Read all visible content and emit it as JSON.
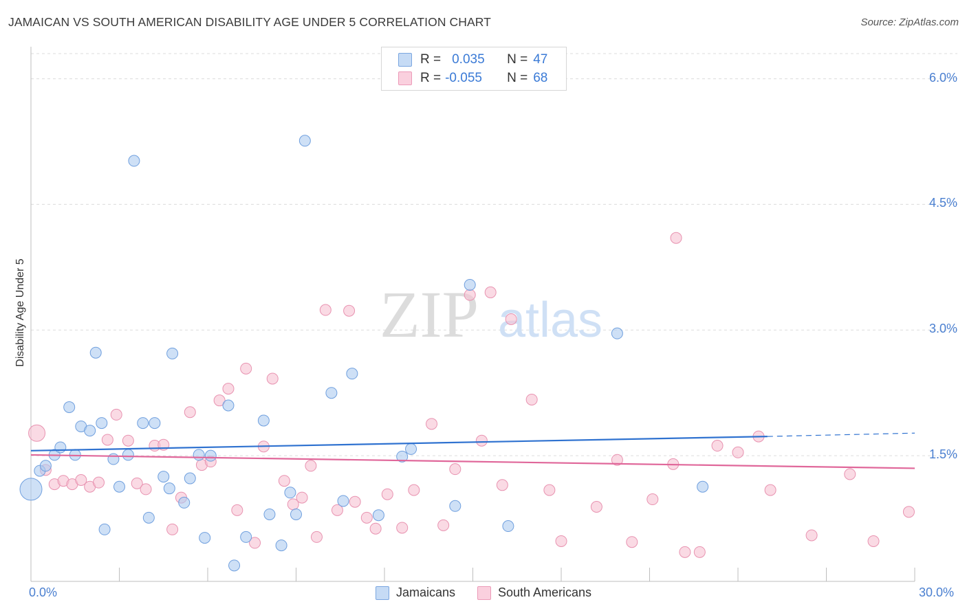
{
  "header": {
    "title": "JAMAICAN VS SOUTH AMERICAN DISABILITY AGE UNDER 5 CORRELATION CHART",
    "source": "Source: ZipAtlas.com"
  },
  "watermark": {
    "zip": "ZIP",
    "atlas": "atlas"
  },
  "legend_top": {
    "rows": [
      {
        "r_label": "R =",
        "r_value": "0.035",
        "n_label": "N =",
        "n_value": "47"
      },
      {
        "r_label": "R =",
        "r_value": "-0.055",
        "n_label": "N =",
        "n_value": "68"
      }
    ]
  },
  "colors": {
    "jamaicans_fill": "#aecbf0",
    "jamaicans_stroke": "#6f9fde",
    "jamaicans_line": "#2f72d0",
    "south_fill": "#f7c1d2",
    "south_stroke": "#e892b0",
    "south_line": "#e0679a",
    "grid": "#dcdcdc",
    "tick_text": "#4a7fd0"
  },
  "chart_data": {
    "type": "scatter",
    "title": "JAMAICAN VS SOUTH AMERICAN DISABILITY AGE UNDER 5 CORRELATION CHART",
    "xlabel": "",
    "ylabel": "Disability Age Under 5",
    "xlim": [
      0,
      30
    ],
    "ylim": [
      0,
      6.3
    ],
    "x_tick_labels": [
      "0.0%",
      "30.0%"
    ],
    "y_ticks": [
      1.5,
      3.0,
      4.5,
      6.0
    ],
    "y_tick_labels": [
      "1.5%",
      "3.0%",
      "4.5%",
      "6.0%"
    ],
    "legend": [
      "Jamaicans",
      "South Americans"
    ],
    "series": [
      {
        "name": "Jamaicans",
        "r": 0.035,
        "n": 47,
        "trend": {
          "x": [
            0,
            25.0
          ],
          "y": [
            1.56,
            1.73
          ],
          "dashed_extension": [
            25.0,
            30.0
          ],
          "dashed_y": [
            1.73,
            1.77
          ]
        },
        "points": [
          [
            0.0,
            1.1
          ],
          [
            0.3,
            1.32
          ],
          [
            0.5,
            1.38
          ],
          [
            0.8,
            1.51
          ],
          [
            1.0,
            1.6
          ],
          [
            1.3,
            2.08
          ],
          [
            1.5,
            1.51
          ],
          [
            1.7,
            1.85
          ],
          [
            2.0,
            1.8
          ],
          [
            2.2,
            2.73
          ],
          [
            2.4,
            1.89
          ],
          [
            2.5,
            0.62
          ],
          [
            2.8,
            1.46
          ],
          [
            3.0,
            1.13
          ],
          [
            3.3,
            1.51
          ],
          [
            3.5,
            5.02
          ],
          [
            3.8,
            1.89
          ],
          [
            4.0,
            0.76
          ],
          [
            4.2,
            1.89
          ],
          [
            4.5,
            1.25
          ],
          [
            4.7,
            1.11
          ],
          [
            4.8,
            2.72
          ],
          [
            5.2,
            0.94
          ],
          [
            5.4,
            1.23
          ],
          [
            5.7,
            1.51
          ],
          [
            5.9,
            0.52
          ],
          [
            6.1,
            1.5
          ],
          [
            6.7,
            2.1
          ],
          [
            6.9,
            0.19
          ],
          [
            7.3,
            0.53
          ],
          [
            7.9,
            1.92
          ],
          [
            8.1,
            0.8
          ],
          [
            8.5,
            0.43
          ],
          [
            8.8,
            1.06
          ],
          [
            9.0,
            0.8
          ],
          [
            9.3,
            5.26
          ],
          [
            10.2,
            2.25
          ],
          [
            10.6,
            0.96
          ],
          [
            10.9,
            2.48
          ],
          [
            11.8,
            0.79
          ],
          [
            12.6,
            1.49
          ],
          [
            12.9,
            1.58
          ],
          [
            14.4,
            0.9
          ],
          [
            14.9,
            3.54
          ],
          [
            16.2,
            0.66
          ],
          [
            19.9,
            2.96
          ],
          [
            22.8,
            1.13
          ]
        ]
      },
      {
        "name": "South Americans",
        "r": -0.055,
        "n": 68,
        "trend": {
          "x": [
            0,
            30.0
          ],
          "y": [
            1.51,
            1.35
          ]
        },
        "points": [
          [
            0.2,
            1.77
          ],
          [
            0.5,
            1.33
          ],
          [
            0.8,
            1.16
          ],
          [
            1.1,
            1.2
          ],
          [
            1.4,
            1.16
          ],
          [
            1.7,
            1.21
          ],
          [
            2.0,
            1.13
          ],
          [
            2.3,
            1.18
          ],
          [
            2.6,
            1.69
          ],
          [
            2.9,
            1.99
          ],
          [
            3.3,
            1.68
          ],
          [
            3.6,
            1.17
          ],
          [
            3.9,
            1.1
          ],
          [
            4.2,
            1.62
          ],
          [
            4.5,
            1.63
          ],
          [
            4.8,
            0.62
          ],
          [
            5.1,
            1.0
          ],
          [
            5.4,
            2.02
          ],
          [
            5.8,
            1.39
          ],
          [
            6.1,
            1.43
          ],
          [
            6.4,
            2.16
          ],
          [
            6.7,
            2.3
          ],
          [
            7.0,
            0.85
          ],
          [
            7.3,
            2.54
          ],
          [
            7.6,
            0.46
          ],
          [
            7.9,
            1.61
          ],
          [
            8.2,
            2.42
          ],
          [
            8.6,
            1.2
          ],
          [
            8.9,
            0.92
          ],
          [
            9.2,
            1.0
          ],
          [
            9.5,
            1.38
          ],
          [
            9.7,
            0.53
          ],
          [
            10.0,
            3.24
          ],
          [
            10.4,
            0.85
          ],
          [
            10.8,
            3.23
          ],
          [
            11.0,
            0.95
          ],
          [
            11.4,
            0.76
          ],
          [
            11.7,
            0.63
          ],
          [
            12.1,
            1.04
          ],
          [
            12.6,
            0.64
          ],
          [
            13.0,
            1.09
          ],
          [
            13.6,
            1.88
          ],
          [
            14.0,
            0.67
          ],
          [
            14.4,
            1.34
          ],
          [
            14.9,
            3.42
          ],
          [
            15.3,
            1.68
          ],
          [
            15.6,
            3.45
          ],
          [
            16.0,
            1.15
          ],
          [
            16.3,
            3.13
          ],
          [
            17.0,
            2.17
          ],
          [
            17.6,
            1.09
          ],
          [
            18.0,
            0.48
          ],
          [
            19.2,
            0.89
          ],
          [
            19.9,
            1.45
          ],
          [
            20.4,
            0.47
          ],
          [
            21.1,
            0.98
          ],
          [
            21.8,
            1.4
          ],
          [
            21.9,
            4.1
          ],
          [
            22.2,
            0.35
          ],
          [
            22.7,
            0.35
          ],
          [
            23.3,
            1.62
          ],
          [
            24.0,
            1.54
          ],
          [
            24.7,
            1.73
          ],
          [
            25.1,
            1.09
          ],
          [
            26.5,
            0.55
          ],
          [
            27.8,
            1.28
          ],
          [
            28.6,
            0.48
          ],
          [
            29.8,
            0.83
          ]
        ]
      }
    ]
  },
  "bottom_legend": [
    {
      "label": "Jamaicans"
    },
    {
      "label": "South Americans"
    }
  ]
}
